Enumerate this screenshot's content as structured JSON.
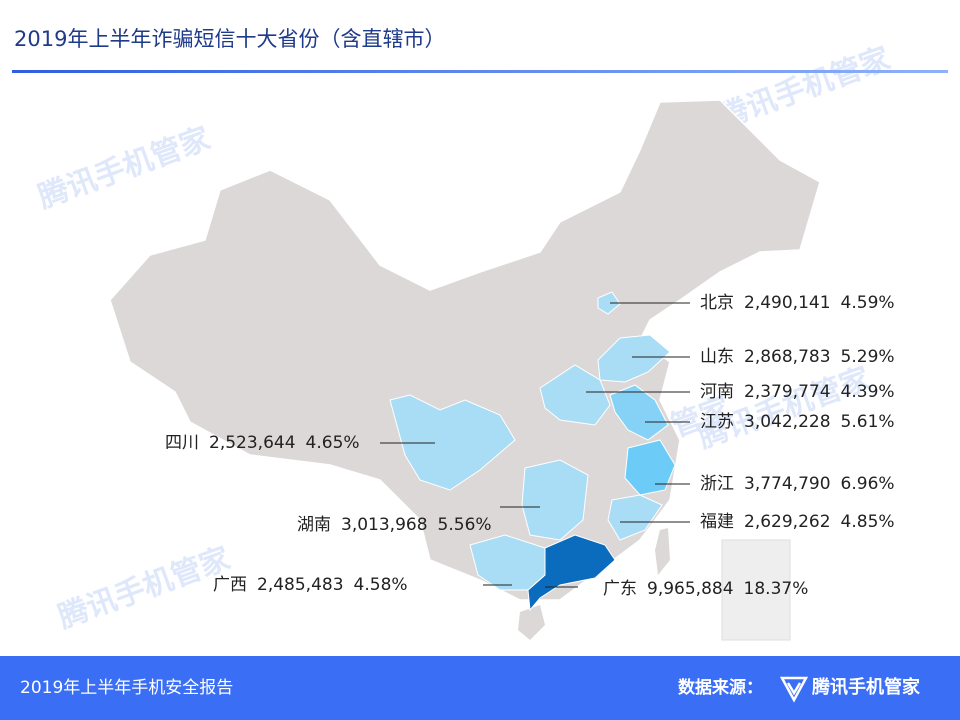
{
  "chart_data": {
    "type": "map",
    "title": "2019年上半年诈骗短信十大省份（含直辖市）",
    "categories": [
      "北京",
      "山东",
      "河南",
      "江苏",
      "浙江",
      "福建",
      "广东",
      "广西",
      "湖南",
      "四川"
    ],
    "values": [
      2490141,
      2868783,
      2379774,
      3042228,
      3774790,
      2629262,
      9965884,
      2485483,
      3013968,
      2523644
    ],
    "value_labels": [
      "2,490,141",
      "2,868,783",
      "2,379,774",
      "3,042,228",
      "3,774,790",
      "2,629,262",
      "9,965,884",
      "2,485,483",
      "3,013,968",
      "2,523,644"
    ],
    "percentages": [
      4.59,
      5.29,
      4.39,
      5.61,
      6.96,
      4.85,
      18.37,
      4.58,
      5.56,
      4.65
    ],
    "percentage_labels": [
      "4.59%",
      "5.29%",
      "4.39%",
      "5.61%",
      "6.96%",
      "4.85%",
      "18.37%",
      "4.58%",
      "5.56%",
      "4.65%"
    ],
    "colors": [
      "#a9dcf5",
      "#a9dcf5",
      "#a9dcf5",
      "#86d2f7",
      "#6dccf7",
      "#a9dcf5",
      "#0b6cbd",
      "#a9dcf5",
      "#a9dcf5",
      "#a9dcf5"
    ]
  },
  "footer": {
    "report": "2019年上半年手机安全报告",
    "source_label": "数据来源：",
    "source": "腾讯手机管家"
  },
  "watermark": "腾讯手机管家"
}
